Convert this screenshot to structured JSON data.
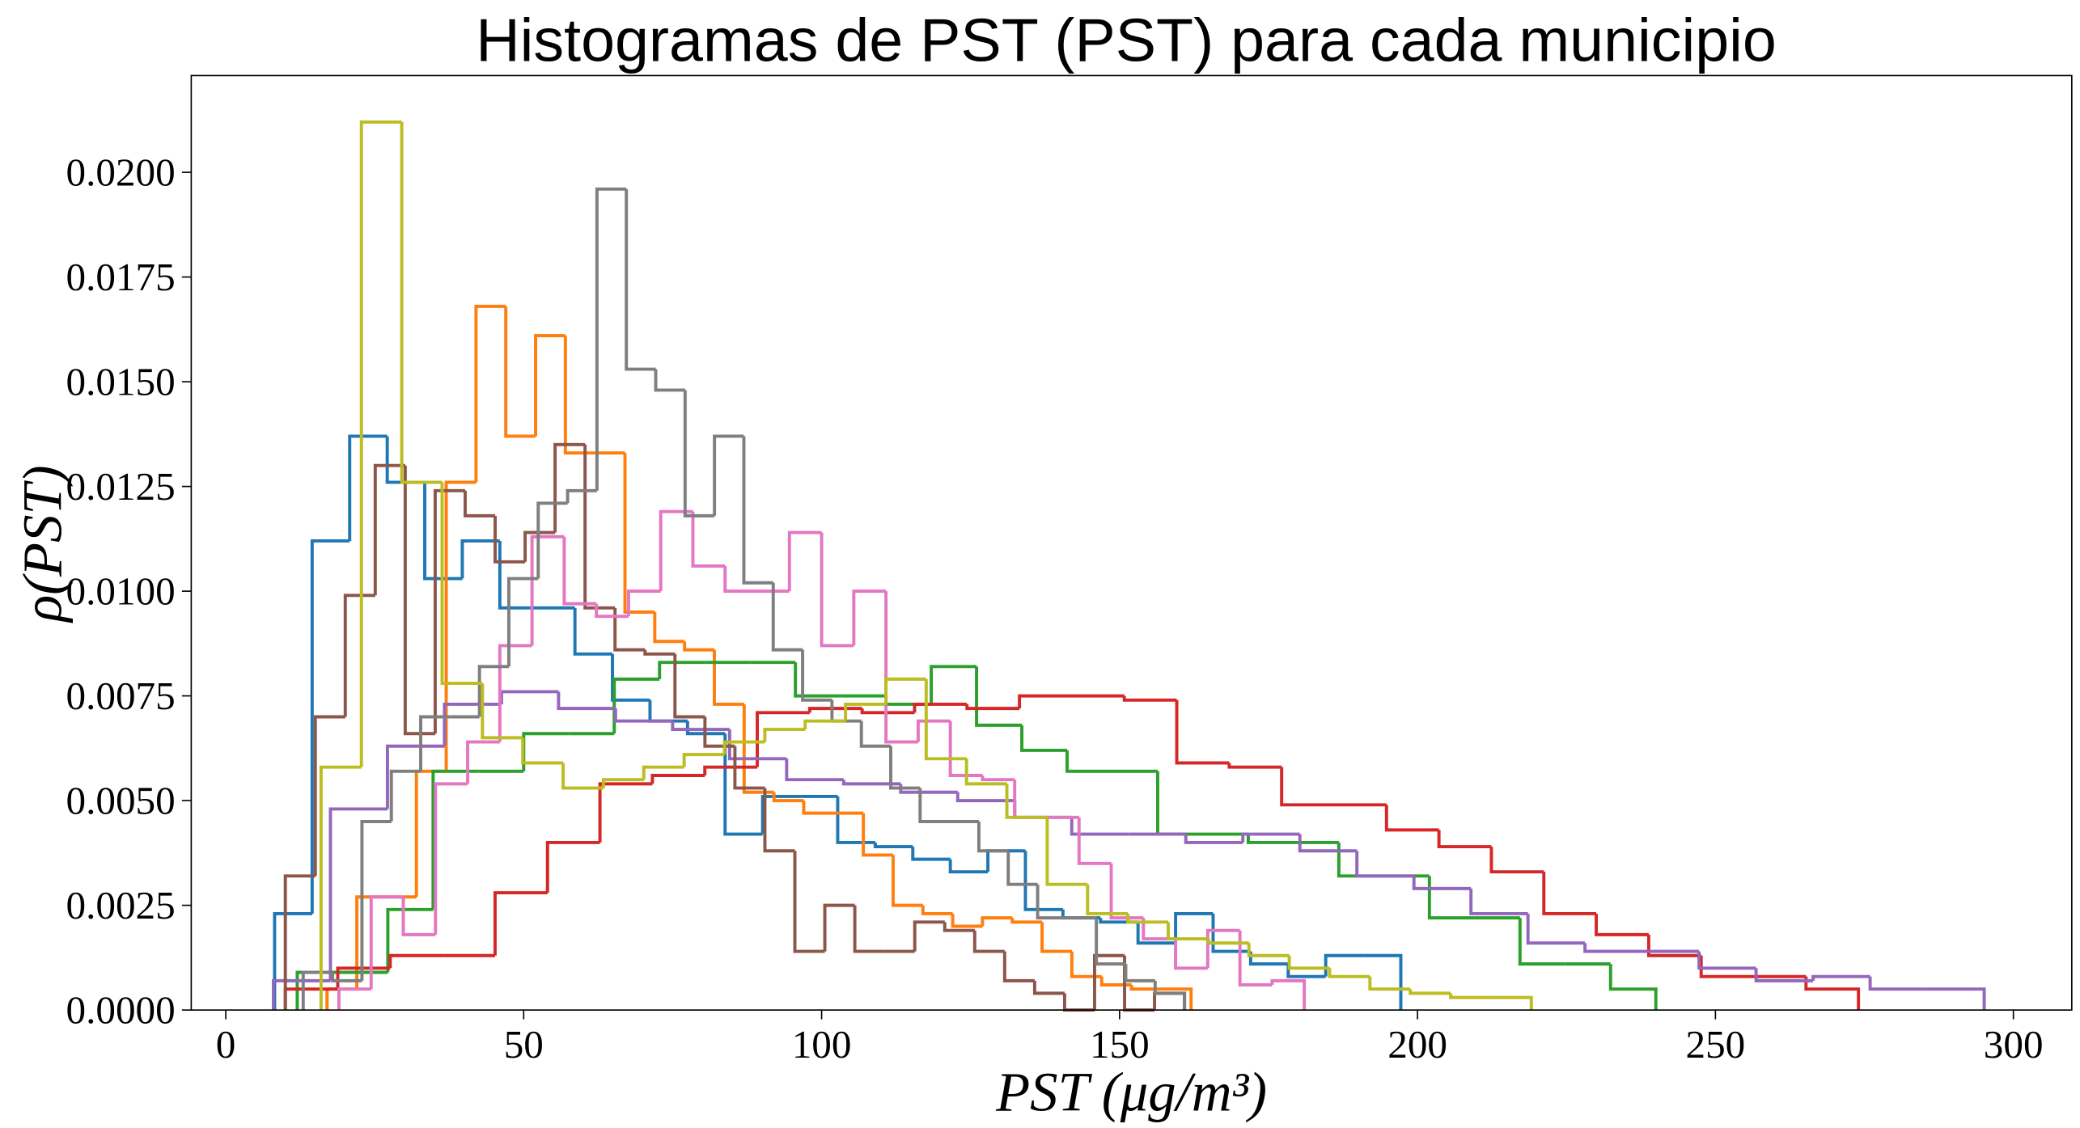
{
  "chart_data": {
    "type": "histogram-step",
    "title": "Histogramas de PST (PST) para cada municipio",
    "xlabel": "PST (μg/m³)",
    "ylabel": "ρ(PST)",
    "xlim": [
      -5.79,
      309.8
    ],
    "ylim": [
      0,
      0.02231
    ],
    "xticks": [
      0,
      50,
      100,
      150,
      200,
      250,
      300
    ],
    "yticks": [
      {
        "value": 0,
        "label": "0.0000"
      },
      {
        "value": 0.0025,
        "label": "0.0025"
      },
      {
        "value": 0.005,
        "label": "0.0050"
      },
      {
        "value": 0.0075,
        "label": "0.0075"
      },
      {
        "value": 0.01,
        "label": "0.0100"
      },
      {
        "value": 0.0125,
        "label": "0.0125"
      },
      {
        "value": 0.015,
        "label": "0.0150"
      },
      {
        "value": 0.0175,
        "label": "0.0175"
      },
      {
        "value": 0.02,
        "label": "0.0200"
      }
    ],
    "grid": false,
    "series": [
      {
        "color": "#1f77b4",
        "bins": [
          8.2,
          14.5,
          20.8,
          27.1,
          33.4,
          39.7,
          46,
          52.3,
          58.6,
          64.9,
          71.2,
          77.5,
          83.8,
          90.1,
          96.4,
          102.7,
          109,
          115.3,
          121.6,
          127.9,
          134.2,
          140.5,
          146.8,
          153.1,
          159.4,
          165.7,
          172,
          178.3,
          184.6,
          190.9,
          197.2
        ],
        "values": [
          0.0023,
          0.0112,
          0.0137,
          0.0126,
          0.0103,
          0.0112,
          0.0096,
          0.0096,
          0.0085,
          0.0074,
          0.0069,
          0.0066,
          0.0042,
          0.0051,
          0.0051,
          0.004,
          0.0039,
          0.0036,
          0.0033,
          0.0038,
          0.0024,
          0.0022,
          0.0021,
          0.0016,
          0.0023,
          0.0014,
          0.0011,
          0.0008,
          0.0013,
          0.0013
        ]
      },
      {
        "color": "#ff7f0e",
        "bins": [
          17,
          22,
          27,
          32,
          37,
          42,
          47,
          52,
          57,
          62,
          67,
          72,
          77,
          82,
          87,
          92,
          97,
          102,
          107,
          112,
          117,
          122,
          127,
          132,
          137,
          142,
          147,
          152,
          157,
          162
        ],
        "values": [
          0.0005,
          0.0027,
          0.0027,
          0.0057,
          0.0126,
          0.0168,
          0.0137,
          0.0161,
          0.0133,
          0.0133,
          0.0095,
          0.0088,
          0.0086,
          0.0073,
          0.0052,
          0.005,
          0.0047,
          0.0047,
          0.0037,
          0.0025,
          0.0023,
          0.002,
          0.0022,
          0.0021,
          0.0014,
          0.0008,
          0.0006,
          0.0005,
          0.0005
        ]
      },
      {
        "color": "#2ca02c",
        "bins": [
          12,
          19.6,
          27.2,
          34.8,
          42.4,
          50,
          57.6,
          65.2,
          72.8,
          80.4,
          88,
          95.6,
          103.2,
          110.8,
          118.4,
          126,
          133.6,
          141.2,
          148.8,
          156.4,
          164,
          171.6,
          179.2,
          186.8,
          194.4,
          202,
          209.6,
          217.2,
          224.8,
          232.4,
          240
        ],
        "values": [
          0.0009,
          0.0009,
          0.0024,
          0.0057,
          0.0057,
          0.0066,
          0.0066,
          0.0079,
          0.0083,
          0.0083,
          0.0083,
          0.0075,
          0.0075,
          0.0073,
          0.0082,
          0.0068,
          0.0062,
          0.0057,
          0.0057,
          0.0042,
          0.0042,
          0.004,
          0.004,
          0.0032,
          0.0032,
          0.0022,
          0.0022,
          0.0011,
          0.0011,
          0.0005
        ]
      },
      {
        "color": "#d62728",
        "bins": [
          10,
          18.8,
          27.6,
          36.4,
          45.2,
          54,
          62.8,
          71.6,
          80.4,
          89.2,
          98,
          106.8,
          115.6,
          124.4,
          133.2,
          142,
          150.8,
          159.6,
          168.4,
          177.2,
          186,
          194.8,
          203.6,
          212.4,
          221.2,
          230,
          238.8,
          247.6,
          256.4,
          265.2,
          274
        ],
        "values": [
          0.0005,
          0.001,
          0.0013,
          0.0013,
          0.0028,
          0.004,
          0.0054,
          0.0056,
          0.0058,
          0.0071,
          0.0072,
          0.0071,
          0.0073,
          0.0072,
          0.0075,
          0.0075,
          0.0074,
          0.0059,
          0.0058,
          0.0049,
          0.0049,
          0.0043,
          0.0039,
          0.0033,
          0.0023,
          0.0018,
          0.0013,
          0.0008,
          0.0008,
          0.0005
        ]
      },
      {
        "color": "#9467bd",
        "bins": [
          8,
          17.57,
          27.14,
          36.71,
          46.28,
          55.85,
          65.42,
          74.99,
          84.56,
          94.13,
          103.7,
          113.27,
          122.84,
          132.41,
          141.98,
          151.55,
          161.12,
          170.69,
          180.26,
          189.83,
          199.4,
          208.97,
          218.54,
          228.11,
          237.68,
          247.25,
          256.82,
          266.39,
          275.96,
          285.53,
          295.1
        ],
        "values": [
          0.0007,
          0.0048,
          0.0063,
          0.0073,
          0.0076,
          0.0072,
          0.0069,
          0.0067,
          0.006,
          0.0055,
          0.0054,
          0.0052,
          0.005,
          0.0046,
          0.0042,
          0.0042,
          0.004,
          0.0042,
          0.0038,
          0.0032,
          0.0029,
          0.0023,
          0.0016,
          0.0014,
          0.0014,
          0.001,
          0.0007,
          0.0008,
          0.0005,
          0.0005
        ]
      },
      {
        "color": "#8c564b",
        "bins": [
          10,
          15.03,
          20.06,
          25.09,
          30.12,
          35.15,
          40.18,
          45.21,
          50.24,
          55.27,
          60.3,
          65.33,
          70.36,
          75.39,
          80.42,
          85.45,
          90.48,
          95.51,
          100.54,
          105.57,
          110.6,
          115.63,
          120.66,
          125.69,
          130.72,
          135.75,
          140.78,
          145.81,
          150.84,
          155.87,
          160.9
        ],
        "values": [
          0.0032,
          0.007,
          0.0099,
          0.013,
          0.0066,
          0.0124,
          0.0118,
          0.0107,
          0.0114,
          0.0135,
          0.0096,
          0.0086,
          0.0085,
          0.007,
          0.0063,
          0.0053,
          0.0038,
          0.0014,
          0.0025,
          0.0014,
          0.0014,
          0.0021,
          0.0019,
          0.0014,
          0.0007,
          0.0004,
          0,
          0.0013,
          0,
          0.0004
        ]
      },
      {
        "color": "#e377c2",
        "bins": [
          19,
          24.4,
          29.8,
          35.2,
          40.6,
          46,
          51.4,
          56.8,
          62.2,
          67.6,
          73,
          78.4,
          83.8,
          89.2,
          94.6,
          100,
          105.4,
          110.8,
          116.2,
          121.6,
          127,
          132.4,
          137.8,
          143.2,
          148.6,
          154,
          159.4,
          164.8,
          170.2,
          175.6,
          181
        ],
        "values": [
          0.0005,
          0.0027,
          0.0018,
          0.0054,
          0.0064,
          0.0087,
          0.0113,
          0.0097,
          0.0094,
          0.01,
          0.0119,
          0.0106,
          0.01,
          0.01,
          0.0114,
          0.0087,
          0.01,
          0.0064,
          0.0069,
          0.0056,
          0.0055,
          0.0046,
          0.0046,
          0.0035,
          0.0022,
          0.0017,
          0.001,
          0.0019,
          0.0006,
          0.0007
        ]
      },
      {
        "color": "#7f7f7f",
        "bins": [
          13,
          17.93,
          22.86,
          27.79,
          32.72,
          37.65,
          42.58,
          47.51,
          52.44,
          57.37,
          62.3,
          67.23,
          72.16,
          77.09,
          82.02,
          86.95,
          91.88,
          96.81,
          101.74,
          106.67,
          111.6,
          116.53,
          121.46,
          126.39,
          131.32,
          136.25,
          141.18,
          146.11,
          151.04,
          155.97,
          160.9
        ],
        "values": [
          0.0009,
          0.0007,
          0.0045,
          0.0057,
          0.007,
          0.007,
          0.0082,
          0.0103,
          0.0121,
          0.0124,
          0.0196,
          0.0153,
          0.0148,
          0.0118,
          0.0137,
          0.0102,
          0.0086,
          0.0074,
          0.0069,
          0.0063,
          0.0053,
          0.0045,
          0.0045,
          0.0038,
          0.003,
          0.0022,
          0.0022,
          0.0011,
          0.0007,
          0.0004
        ]
      },
      {
        "color": "#bcbd22",
        "bins": [
          16,
          22.77,
          29.54,
          36.31,
          43.08,
          49.85,
          56.62,
          63.39,
          70.16,
          76.93,
          83.7,
          90.47,
          97.24,
          104.01,
          110.78,
          117.55,
          124.32,
          131.09,
          137.86,
          144.63,
          151.4,
          158.17,
          164.94,
          171.71,
          178.48,
          185.25,
          192.02,
          198.79,
          205.56,
          212.33,
          219.1
        ],
        "values": [
          0.0058,
          0.0212,
          0.0126,
          0.0078,
          0.0065,
          0.0059,
          0.0053,
          0.0055,
          0.0058,
          0.0061,
          0.0064,
          0.0067,
          0.0069,
          0.0073,
          0.0079,
          0.006,
          0.0054,
          0.0046,
          0.003,
          0.0023,
          0.0021,
          0.0017,
          0.0016,
          0.0013,
          0.001,
          0.0008,
          0.0005,
          0.0004,
          0.0003,
          0.0003
        ]
      }
    ]
  }
}
